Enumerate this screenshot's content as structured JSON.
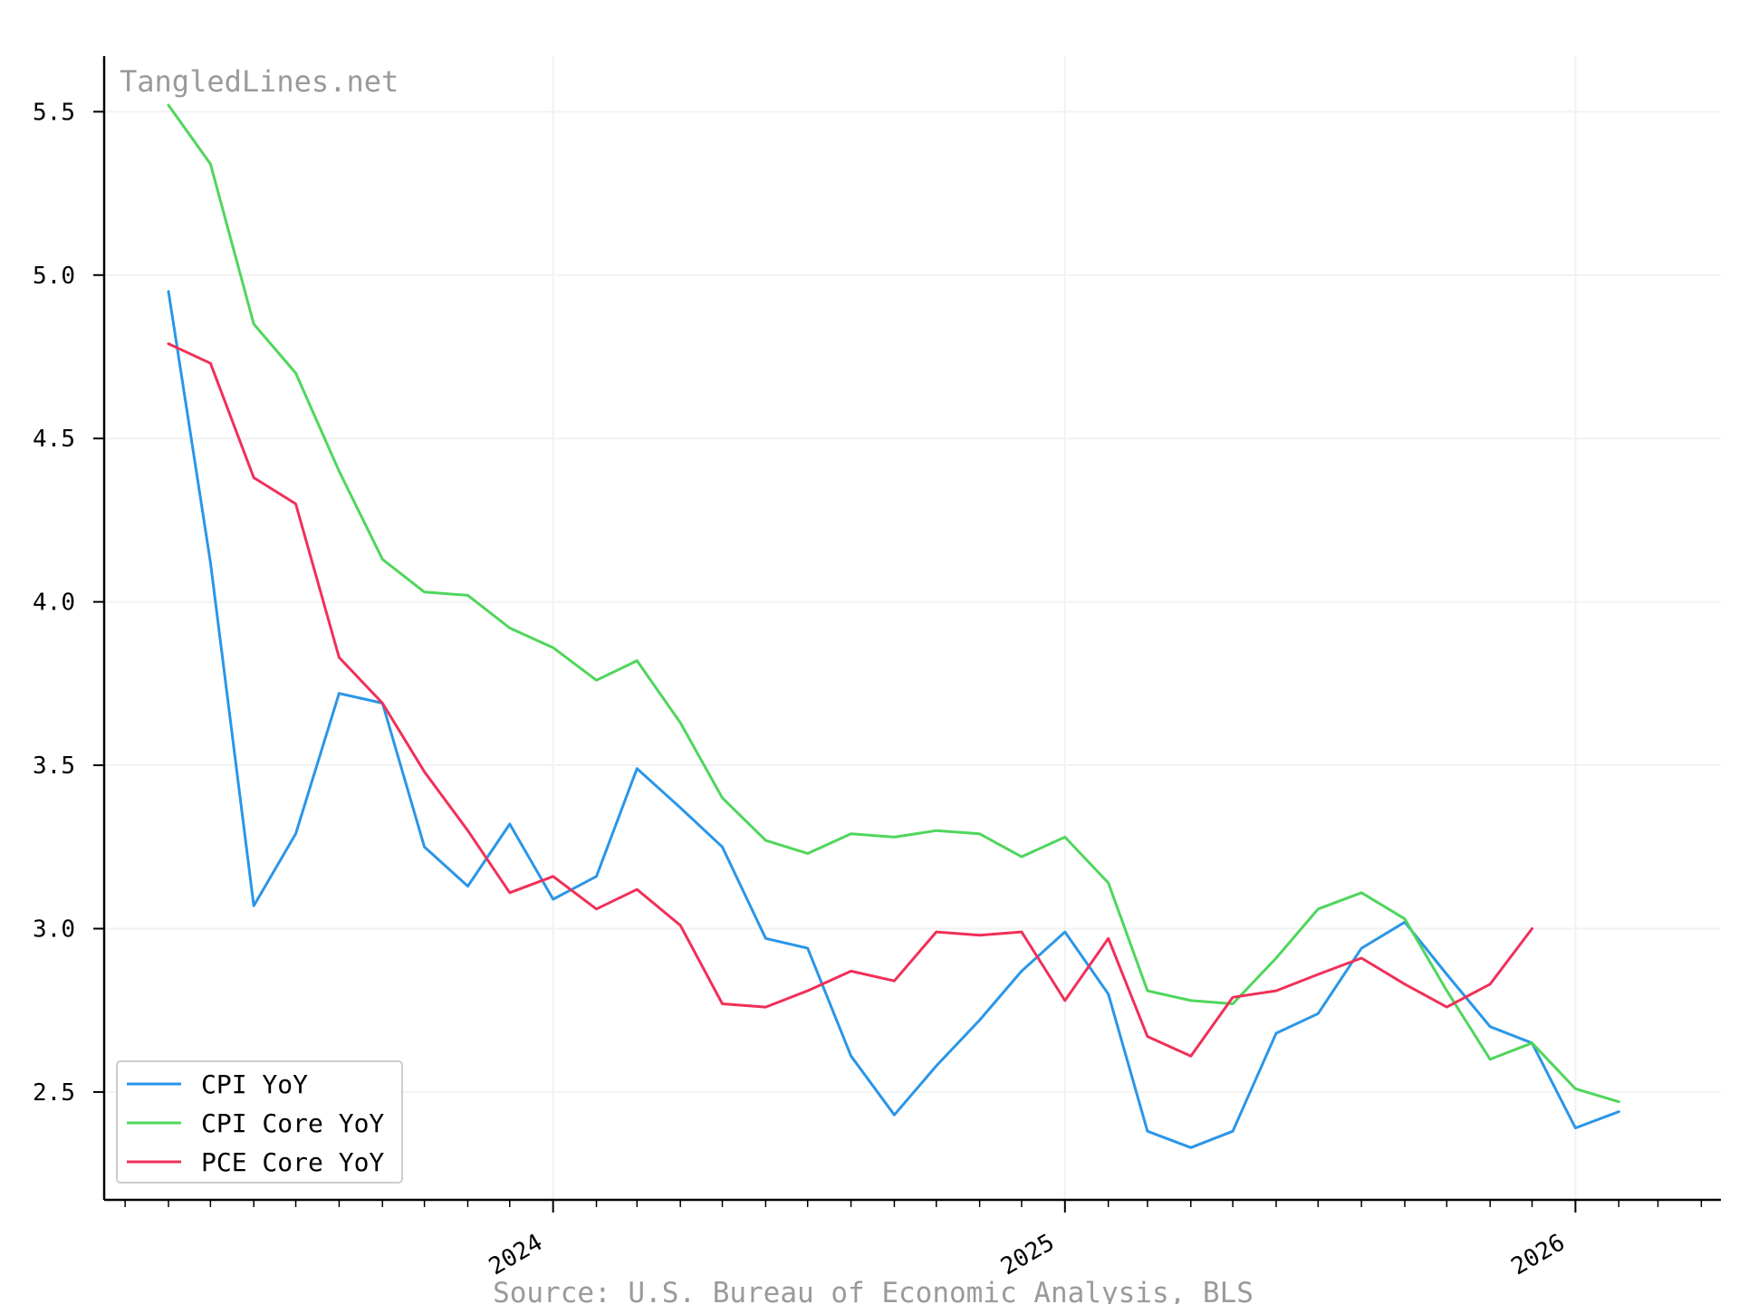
{
  "watermark": "TangledLines.net",
  "source": "Source: U.S. Bureau of Economic Analysis, BLS",
  "chart_data": {
    "type": "line",
    "title": "",
    "xlabel": "",
    "ylabel": "",
    "x_axis": {
      "kind": "date",
      "range": [
        "2023-02-14",
        "2026-04-15"
      ],
      "major_ticks": [
        {
          "date": "2024-01-01",
          "label": "2024"
        },
        {
          "date": "2025-01-01",
          "label": "2025"
        },
        {
          "date": "2026-01-01",
          "label": "2026"
        }
      ],
      "minor_ticks": "monthly"
    },
    "y_axis": {
      "range": [
        2.17,
        5.67
      ],
      "ticks": [
        2.5,
        3.0,
        3.5,
        4.0,
        4.5,
        5.0,
        5.5
      ],
      "tick_labels": [
        "2.5",
        "3.0",
        "3.5",
        "4.0",
        "4.5",
        "5.0",
        "5.5"
      ]
    },
    "grid": true,
    "legend": "lower-left",
    "series": [
      {
        "name": "CPI YoY",
        "color": "#2a96e8",
        "x": [
          "2023-04-01",
          "2023-05-01",
          "2023-06-01",
          "2023-07-01",
          "2023-08-01",
          "2023-09-01",
          "2023-10-01",
          "2023-11-01",
          "2023-12-01",
          "2024-01-01",
          "2024-02-01",
          "2024-03-01",
          "2024-04-01",
          "2024-05-01",
          "2024-06-01",
          "2024-07-01",
          "2024-08-01",
          "2024-09-01",
          "2024-10-01",
          "2024-11-01",
          "2024-12-01",
          "2025-01-01",
          "2025-02-01",
          "2025-03-01",
          "2025-04-01",
          "2025-05-01",
          "2025-06-01",
          "2025-07-01",
          "2025-08-01",
          "2025-09-01",
          "2025-10-01",
          "2025-11-01",
          "2025-12-01",
          "2026-01-01",
          "2026-02-01"
        ],
        "values": [
          4.95,
          4.12,
          3.07,
          3.29,
          3.72,
          3.69,
          3.25,
          3.13,
          3.32,
          3.09,
          3.16,
          3.49,
          3.37,
          3.25,
          2.97,
          2.94,
          2.61,
          2.43,
          2.58,
          2.72,
          2.87,
          2.99,
          2.8,
          2.38,
          2.33,
          2.38,
          2.68,
          2.74,
          2.94,
          3.02,
          2.86,
          2.7,
          2.65,
          2.39,
          2.44
        ]
      },
      {
        "name": "CPI Core YoY",
        "color": "#4fd65c",
        "x": [
          "2023-04-01",
          "2023-05-01",
          "2023-06-01",
          "2023-07-01",
          "2023-08-01",
          "2023-09-01",
          "2023-10-01",
          "2023-11-01",
          "2023-12-01",
          "2024-01-01",
          "2024-02-01",
          "2024-03-01",
          "2024-04-01",
          "2024-05-01",
          "2024-06-01",
          "2024-07-01",
          "2024-08-01",
          "2024-09-01",
          "2024-10-01",
          "2024-11-01",
          "2024-12-01",
          "2025-01-01",
          "2025-02-01",
          "2025-03-01",
          "2025-04-01",
          "2025-05-01",
          "2025-06-01",
          "2025-07-01",
          "2025-08-01",
          "2025-09-01",
          "2025-10-01",
          "2025-11-01",
          "2025-12-01",
          "2026-01-01",
          "2026-02-01"
        ],
        "values": [
          5.52,
          5.34,
          4.85,
          4.7,
          4.4,
          4.13,
          4.03,
          4.02,
          3.92,
          3.86,
          3.76,
          3.82,
          3.63,
          3.4,
          3.27,
          3.23,
          3.29,
          3.28,
          3.3,
          3.29,
          3.22,
          3.28,
          3.14,
          2.81,
          2.78,
          2.77,
          2.91,
          3.06,
          3.11,
          3.03,
          2.81,
          2.6,
          2.65,
          2.51,
          2.47
        ]
      },
      {
        "name": "PCE Core YoY",
        "color": "#f03058",
        "x": [
          "2023-04-01",
          "2023-05-01",
          "2023-06-01",
          "2023-07-01",
          "2023-08-01",
          "2023-09-01",
          "2023-10-01",
          "2023-11-01",
          "2023-12-01",
          "2024-01-01",
          "2024-02-01",
          "2024-03-01",
          "2024-04-01",
          "2024-05-01",
          "2024-06-01",
          "2024-07-01",
          "2024-08-01",
          "2024-09-01",
          "2024-10-01",
          "2024-11-01",
          "2024-12-01",
          "2025-01-01",
          "2025-02-01",
          "2025-03-01",
          "2025-04-01",
          "2025-05-01",
          "2025-06-01",
          "2025-07-01",
          "2025-08-01",
          "2025-09-01",
          "2025-10-01",
          "2025-11-01",
          "2025-12-01"
        ],
        "values": [
          4.79,
          4.73,
          4.38,
          4.3,
          3.83,
          3.69,
          3.48,
          3.3,
          3.11,
          3.16,
          3.06,
          3.12,
          3.01,
          2.77,
          2.76,
          2.81,
          2.87,
          2.84,
          2.99,
          2.98,
          2.99,
          2.78,
          2.97,
          2.67,
          2.61,
          2.79,
          2.81,
          2.86,
          2.91,
          2.83,
          2.76,
          2.83,
          3.0
        ]
      }
    ]
  }
}
